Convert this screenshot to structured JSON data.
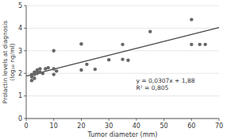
{
  "chart_data": {
    "type": "scatter",
    "xlabel": "Tumor diameter (mm)",
    "ylabel": "Prolactin levels at diagnosis\n(log₁₀ ng/ml)",
    "annotation": "y = 0,0307x + 1,88\nR² = 0,805",
    "series": [
      {
        "type": "scatter",
        "color": "#666666",
        "x": [
          2,
          2,
          2,
          3,
          3,
          3,
          3,
          4,
          4,
          4,
          5,
          5,
          6,
          7,
          8,
          10,
          10,
          10,
          11,
          20,
          20,
          22,
          25,
          30,
          35,
          35,
          37,
          45,
          60,
          60,
          63,
          65
        ],
        "values": [
          1.95,
          1.85,
          1.68,
          2.0,
          2.05,
          1.95,
          1.78,
          2.1,
          2.0,
          2.15,
          2.2,
          2.05,
          2.0,
          2.2,
          2.25,
          3.0,
          1.95,
          2.2,
          2.1,
          3.3,
          2.15,
          2.4,
          2.18,
          2.6,
          3.28,
          2.62,
          2.58,
          3.85,
          4.38,
          3.28,
          3.28,
          3.28
        ]
      },
      {
        "type": "line",
        "color": "#444444",
        "x": [
          0,
          70
        ],
        "values": [
          1.88,
          4.029
        ]
      }
    ],
    "xlim": [
      0,
      70
    ],
    "ylim": [
      0,
      5
    ],
    "xticks": [
      0,
      10,
      20,
      30,
      40,
      50,
      60,
      70
    ],
    "yticks": [
      0,
      1,
      2,
      3,
      4,
      5
    ],
    "grid": "y"
  }
}
